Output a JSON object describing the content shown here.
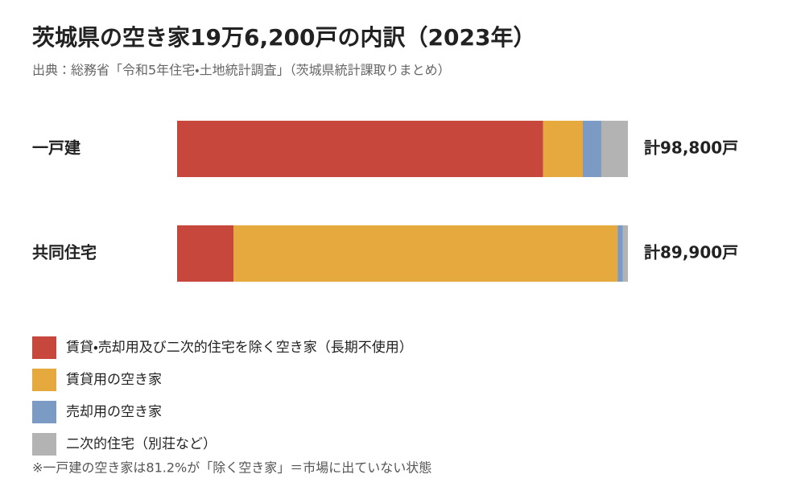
{
  "chart_data": {
    "type": "stacked-bar-100",
    "title": "茨城県の空き家19万6,200戸の内訳（2023年）",
    "subtitle": "出典：総務省「令和5年住宅・土地統計調査」（茨城県統計課取りまとめ）",
    "categories": [
      "一戸建",
      "共同住宅"
    ],
    "totals": [
      "計98,800戸",
      "計89,900戸"
    ],
    "series": [
      {
        "name": "賃貸・売却用及び二次的住宅を除く空き家（長期不使用）",
        "color": "#c8473d",
        "values": [
          81.2,
          12.5
        ]
      },
      {
        "name": "賃貸用の空き家",
        "color": "#e5a93d",
        "values": [
          8.8,
          85.2
        ]
      },
      {
        "name": "売却用の空き家",
        "color": "#7b9bc4",
        "values": [
          4.1,
          1.2
        ]
      },
      {
        "name": "二次的住宅（別荘など）",
        "color": "#b3b3b3",
        "values": [
          5.9,
          1.1
        ]
      }
    ],
    "note": "※一戸建の空き家は81.2%が「除く空き家」＝市場に出ていない状態"
  }
}
